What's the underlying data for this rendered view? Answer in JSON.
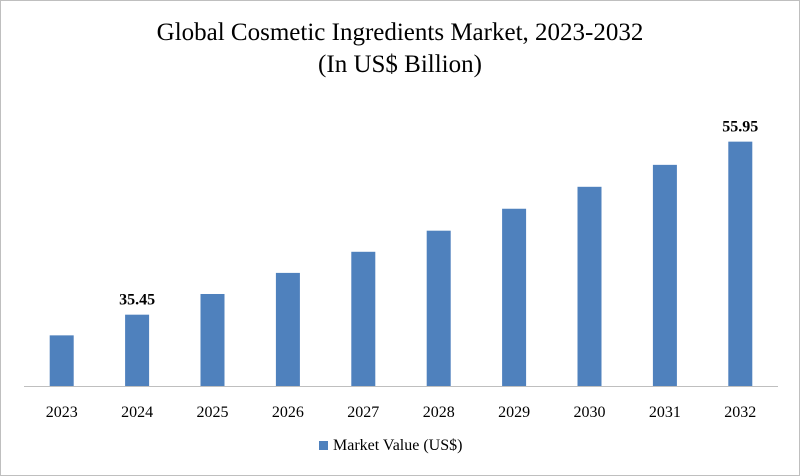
{
  "chart_data": {
    "type": "bar",
    "title_line1": "Global Cosmetic Ingredients Market, 2023-2032",
    "title_line2": "(In US$ Billion)",
    "categories": [
      "2023",
      "2024",
      "2025",
      "2026",
      "2027",
      "2028",
      "2029",
      "2030",
      "2031",
      "2032"
    ],
    "series": [
      {
        "name": "Market Value (US$)",
        "values": [
          33.0,
          35.45,
          37.9,
          40.4,
          42.9,
          45.4,
          48.0,
          50.6,
          53.2,
          55.95
        ],
        "color": "#4f81bd"
      }
    ],
    "data_labels": [
      {
        "index": 1,
        "text": "35.45"
      },
      {
        "index": 9,
        "text": "55.95"
      }
    ],
    "ylim": [
      27.0,
      56.5
    ],
    "grid": false,
    "legend_position": "bottom"
  }
}
